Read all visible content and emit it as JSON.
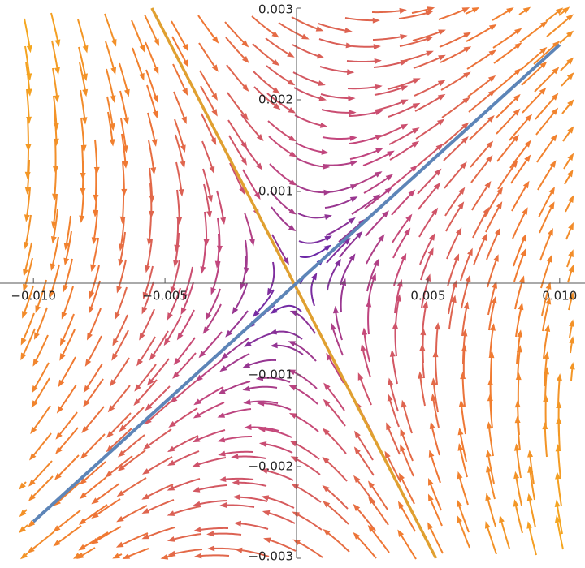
{
  "chart_data": {
    "type": "streamplot",
    "xlim": [
      -0.0105,
      0.0105
    ],
    "ylim": [
      -0.003,
      0.003
    ],
    "xticks": [
      {
        "value": -0.01,
        "label": "−0.010"
      },
      {
        "value": -0.005,
        "label": "−0.005"
      },
      0.005,
      {
        "value": 0.01,
        "label": "0.010"
      }
    ],
    "yticks": [
      {
        "value": -0.003,
        "label": "−0.003"
      },
      {
        "value": -0.002,
        "label": "−0.002"
      },
      {
        "value": -0.001,
        "label": "−0.001"
      },
      0.001,
      0.002,
      0.003
    ],
    "series": [
      {
        "color": "#5d85b8",
        "x": [
          -0.01,
          0.01
        ],
        "values": [
          -0.0026,
          0.0026
        ]
      },
      {
        "color": "#e0a030",
        "x": [
          -0.0055,
          0.0053
        ],
        "values": [
          0.003,
          -0.003
        ]
      }
    ]
  }
}
